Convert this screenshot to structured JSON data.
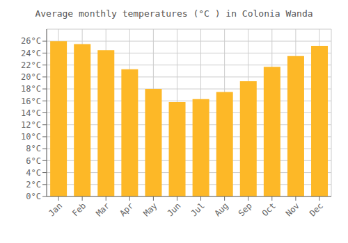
{
  "chart_data": {
    "type": "bar",
    "title": "Average monthly temperatures (°C ) in Colonia Wanda",
    "categories": [
      "Jan",
      "Feb",
      "Mar",
      "Apr",
      "May",
      "Jun",
      "Jul",
      "Aug",
      "Sep",
      "Oct",
      "Nov",
      "Dec"
    ],
    "values": [
      26.0,
      25.5,
      24.5,
      21.3,
      18.0,
      15.8,
      16.3,
      17.5,
      19.3,
      21.7,
      23.5,
      25.2
    ],
    "color": "#FDB827",
    "ylim": [
      0,
      28
    ],
    "yticks": [
      {
        "value": 0,
        "label": "0°C"
      },
      {
        "value": 2,
        "label": "2°C"
      },
      {
        "value": 4,
        "label": "4°C"
      },
      {
        "value": 6,
        "label": "6°C"
      },
      {
        "value": 8,
        "label": "8°C"
      },
      {
        "value": 10,
        "label": "10°C"
      },
      {
        "value": 12,
        "label": "12°C"
      },
      {
        "value": 14,
        "label": "14°C"
      },
      {
        "value": 16,
        "label": "16°C"
      },
      {
        "value": 18,
        "label": "18°C"
      },
      {
        "value": 20,
        "label": "20°C"
      },
      {
        "value": 22,
        "label": "22°C"
      },
      {
        "value": 24,
        "label": "24°C"
      },
      {
        "value": 26,
        "label": "26°C"
      }
    ],
    "grid": true
  }
}
